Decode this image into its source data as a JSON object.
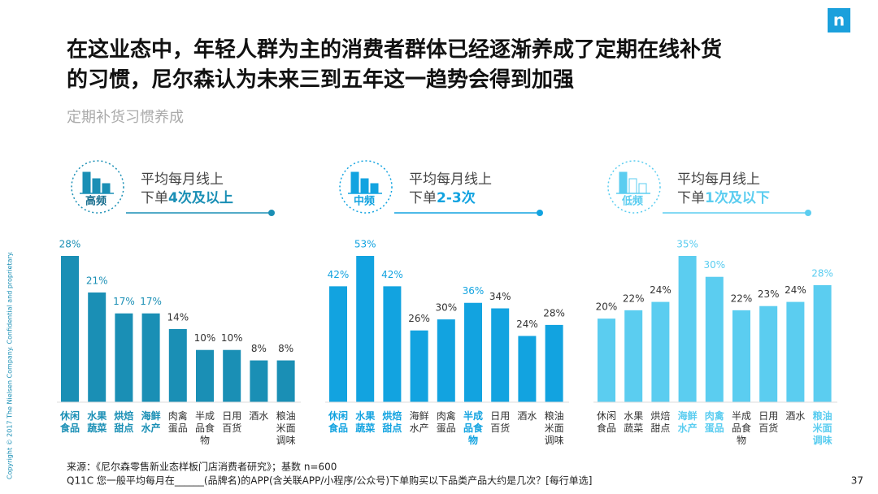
{
  "title_lines": [
    "在这业态中，年轻人群为主的消费者群体已经逐渐养成了定期在线补货",
    "的习惯，尼尔森认为未来三到五年这一趋势会得到加强"
  ],
  "subtitle": "定期补货习惯养成",
  "logo": "n",
  "source_lines": [
    "来源：《尼尔森零售新业态样板门店消费者研究》；基数 n=600",
    "Q11C 您一般平均每月在______(品牌名)的APP(含关联APP/小程序/公众号)下单购买以下品类产品大约是几次？[每行单选]"
  ],
  "page_number": "37",
  "copyright": "Copyright © 2017 The Nielsen Company. Confidential and proprietary.",
  "chart_data": [
    {
      "type": "bar",
      "badge": "高频",
      "header_line1": "平均每月线上",
      "header_prefix": "下单",
      "header_emphasis": "4次及以上",
      "color": "#1a8fb5",
      "categories": [
        "休闲食品",
        "水果蔬菜",
        "烘焙甜点",
        "海鲜水产",
        "肉禽蛋品",
        "半成品食物",
        "日用百货",
        "酒水",
        "粮油米面调味"
      ],
      "values": [
        28,
        21,
        17,
        17,
        14,
        10,
        10,
        8,
        8
      ],
      "value_labels": [
        "28%",
        "21%",
        "17%",
        "17%",
        "14%",
        "10%",
        "10%",
        "8%",
        "8%"
      ],
      "highlighted": [
        0,
        1,
        2,
        3
      ]
    },
    {
      "type": "bar",
      "badge": "中频",
      "header_line1": "平均每月线上",
      "header_prefix": "下单",
      "header_emphasis": "2-3次",
      "color": "#12a3e0",
      "categories": [
        "休闲食品",
        "水果蔬菜",
        "烘焙甜点",
        "海鲜水产",
        "肉禽蛋品",
        "半成品食物",
        "日用百货",
        "酒水",
        "粮油米面调味"
      ],
      "values": [
        42,
        53,
        42,
        26,
        30,
        36,
        34,
        24,
        28
      ],
      "value_labels": [
        "42%",
        "53%",
        "42%",
        "26%",
        "30%",
        "36%",
        "34%",
        "24%",
        "28%"
      ],
      "highlighted": [
        0,
        1,
        2,
        5
      ]
    },
    {
      "type": "bar",
      "badge": "低频",
      "header_line1": "平均每月线上",
      "header_prefix": "下单",
      "header_emphasis": "1次及以下",
      "color": "#5bcdf0",
      "categories": [
        "休闲食品",
        "水果蔬菜",
        "烘焙甜点",
        "海鲜水产",
        "肉禽蛋品",
        "半成品食物",
        "日用百货",
        "酒水",
        "粮油米面调味"
      ],
      "values": [
        20,
        22,
        24,
        35,
        30,
        22,
        23,
        24,
        28
      ],
      "value_labels": [
        "20%",
        "22%",
        "24%",
        "35%",
        "30%",
        "22%",
        "23%",
        "24%",
        "28%"
      ],
      "highlighted": [
        3,
        4,
        8
      ]
    }
  ]
}
